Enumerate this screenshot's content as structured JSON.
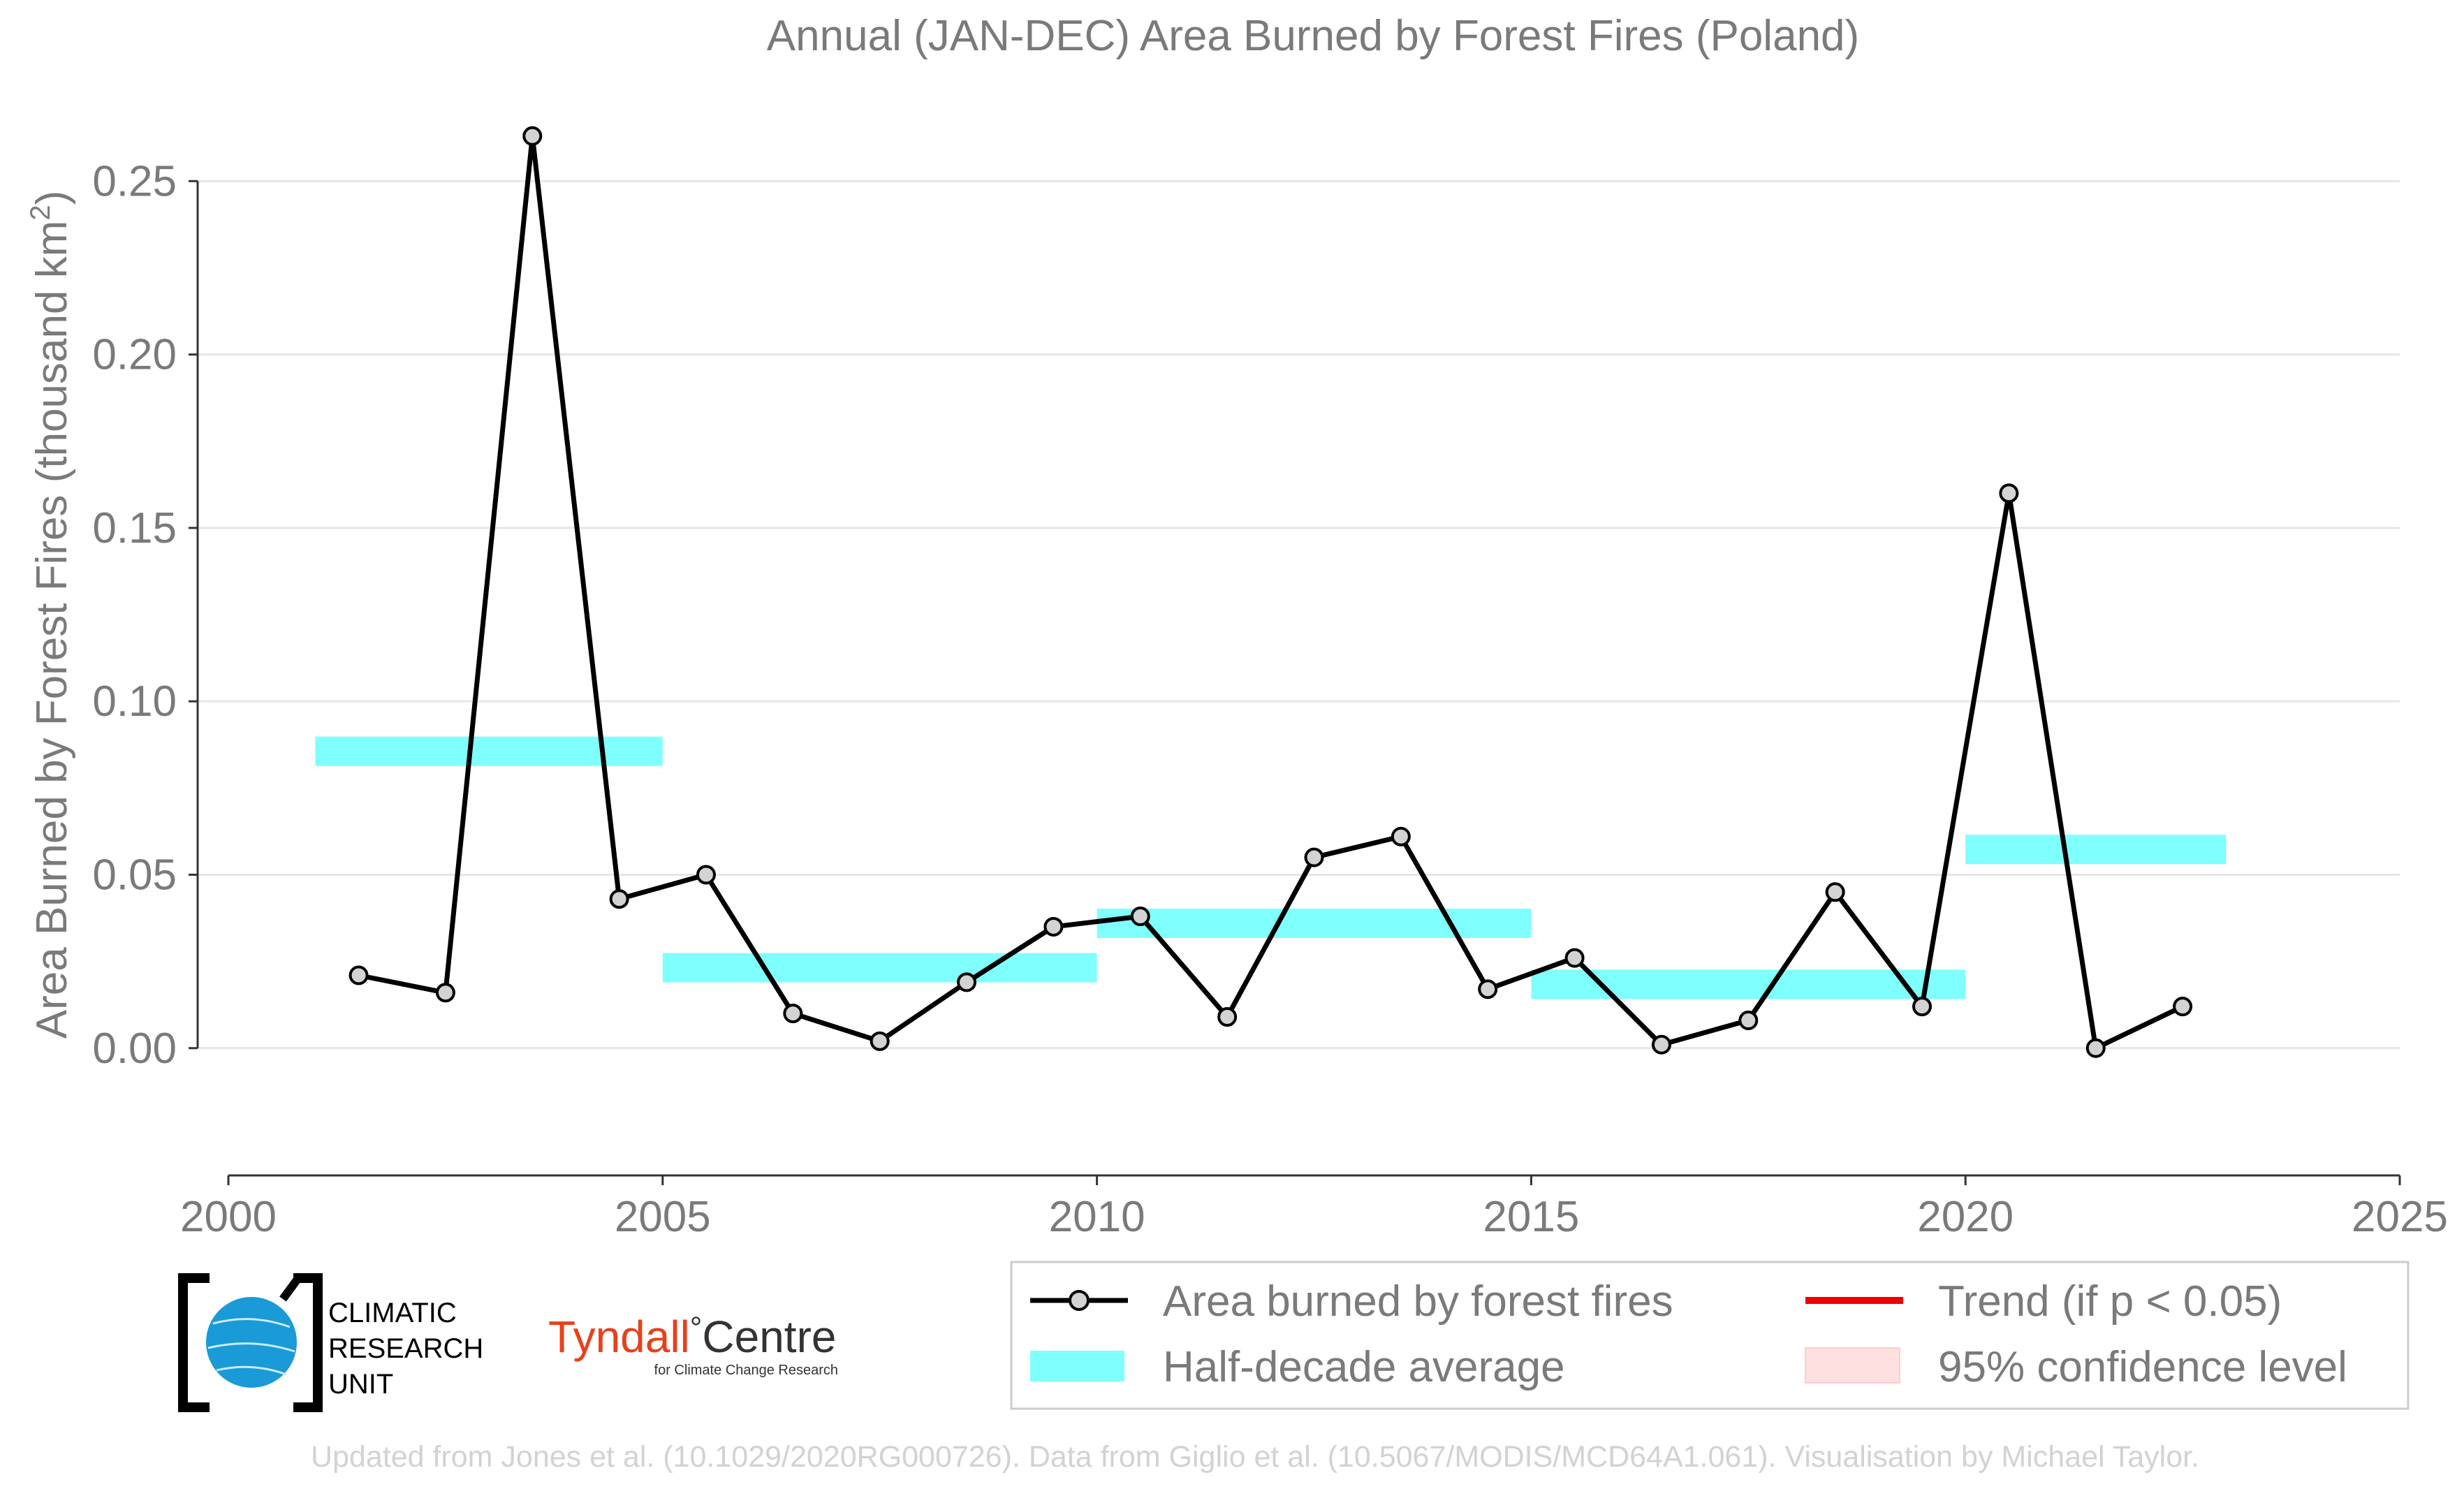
{
  "chart_data": {
    "type": "line",
    "title": "Annual (JAN-DEC) Area Burned by Forest Fires (Poland)",
    "ylabel_main": "Area Burned by Forest Fires (thousand km",
    "ylabel_sup": "2",
    "ylabel_close": ")",
    "xlim": [
      2000,
      2025
    ],
    "ylim": [
      -0.022,
      0.27
    ],
    "x_ticks": [
      2000,
      2005,
      2010,
      2015,
      2020,
      2025
    ],
    "x_tick_labels": [
      "2000",
      "2005",
      "2010",
      "2015",
      "2020",
      "2025"
    ],
    "y_ticks": [
      0.0,
      0.05,
      0.1,
      0.15,
      0.2,
      0.25
    ],
    "y_tick_labels": [
      "0.00",
      "0.05",
      "0.10",
      "0.15",
      "0.20",
      "0.25"
    ],
    "grid": "horizontal",
    "series": [
      {
        "name": "Area burned by forest fires",
        "color": "#000000",
        "marker_fill": "#d3d3d3",
        "x": [
          2001.5,
          2002.5,
          2003.5,
          2004.5,
          2005.5,
          2006.5,
          2007.5,
          2008.5,
          2009.5,
          2010.5,
          2011.5,
          2012.5,
          2013.5,
          2014.5,
          2015.5,
          2016.5,
          2017.5,
          2018.5,
          2019.5,
          2020.5,
          2021.5,
          2022.5
        ],
        "y": [
          0.021,
          0.016,
          0.263,
          0.043,
          0.05,
          0.01,
          0.002,
          0.019,
          0.035,
          0.038,
          0.009,
          0.055,
          0.061,
          0.017,
          0.026,
          0.001,
          0.008,
          0.045,
          0.012,
          0.16,
          0.0,
          0.012
        ]
      }
    ],
    "half_decade_average": {
      "name": "Half-decade average",
      "color": "#80ffff",
      "bands": [
        {
          "x0": 2001,
          "x1": 2005,
          "y": 0.0856
        },
        {
          "x0": 2005,
          "x1": 2010,
          "y": 0.0232
        },
        {
          "x0": 2010,
          "x1": 2015,
          "y": 0.036
        },
        {
          "x0": 2015,
          "x1": 2020,
          "y": 0.0184
        },
        {
          "x0": 2020,
          "x1": 2023,
          "y": 0.0573
        }
      ]
    },
    "legend": {
      "placement": "bottom-right",
      "entries": [
        {
          "label": "Area burned by forest fires",
          "kind": "line-marker",
          "color": "#000000"
        },
        {
          "label": "Trend (if p < 0.05)",
          "kind": "line",
          "color": "#ee0000"
        },
        {
          "label": "Half-decade average",
          "kind": "band",
          "color": "#80ffff"
        },
        {
          "label": "95% confidence level",
          "kind": "patch",
          "color": "#ffe0e0"
        }
      ]
    }
  },
  "logos": {
    "cru": [
      "CLIMATIC",
      "RESEARCH",
      "UNIT"
    ],
    "tyndall_main": "Tyndall",
    "tyndall_degree": "°",
    "tyndall_centre": "Centre",
    "tyndall_sub": "for Climate Change Research"
  },
  "footer": "Updated from Jones et al. (10.1029/2020RG000726). Data from Giglio et al. (10.5067/MODIS/MCD64A1.061). Visualisation by Michael Taylor."
}
